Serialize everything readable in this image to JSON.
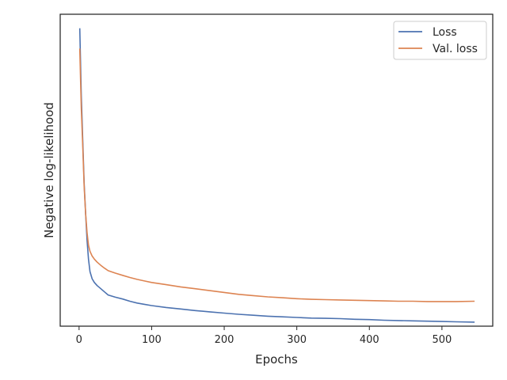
{
  "chart_data": {
    "type": "line",
    "title": "",
    "xlabel": "Epochs",
    "ylabel": "Negative log-likelihood",
    "xlim": [
      -26,
      570
    ],
    "ylim": [
      0,
      1
    ],
    "x_ticks": [
      0,
      100,
      200,
      300,
      400,
      500
    ],
    "x_tick_labels": [
      "0",
      "100",
      "200",
      "300",
      "400",
      "500"
    ],
    "y_tick_labels": [],
    "grid": false,
    "legend": "top-right",
    "y_values_note": "",
    "series": [
      {
        "name": "Loss",
        "color": "#4c72b0",
        "x": [
          1,
          3,
          5,
          7,
          9,
          11,
          13,
          15,
          18,
          21,
          25,
          30,
          35,
          40,
          50,
          60,
          70,
          80,
          90,
          100,
          120,
          140,
          160,
          180,
          200,
          220,
          240,
          260,
          280,
          300,
          320,
          340,
          360,
          380,
          400,
          420,
          440,
          460,
          480,
          500,
          520,
          545
        ],
        "y": [
          0.955,
          0.74,
          0.6,
          0.46,
          0.36,
          0.275,
          0.215,
          0.175,
          0.152,
          0.14,
          0.13,
          0.12,
          0.11,
          0.1,
          0.093,
          0.087,
          0.08,
          0.074,
          0.07,
          0.066,
          0.06,
          0.055,
          0.05,
          0.046,
          0.042,
          0.038,
          0.035,
          0.032,
          0.03,
          0.028,
          0.026,
          0.025,
          0.024,
          0.022,
          0.021,
          0.019,
          0.018,
          0.017,
          0.016,
          0.015,
          0.014,
          0.013
        ]
      },
      {
        "name": "Val. loss",
        "color": "#dd8452",
        "x": [
          1,
          3,
          5,
          7,
          9,
          11,
          13,
          15,
          18,
          21,
          25,
          30,
          35,
          40,
          50,
          60,
          70,
          80,
          90,
          100,
          120,
          140,
          160,
          180,
          200,
          220,
          240,
          260,
          280,
          300,
          320,
          340,
          360,
          380,
          400,
          420,
          440,
          460,
          480,
          500,
          520,
          545
        ],
        "y": [
          0.89,
          0.7,
          0.58,
          0.45,
          0.36,
          0.3,
          0.26,
          0.24,
          0.225,
          0.215,
          0.205,
          0.195,
          0.186,
          0.178,
          0.17,
          0.163,
          0.156,
          0.15,
          0.145,
          0.14,
          0.133,
          0.126,
          0.12,
          0.114,
          0.108,
          0.102,
          0.098,
          0.094,
          0.091,
          0.088,
          0.086,
          0.085,
          0.084,
          0.083,
          0.082,
          0.081,
          0.08,
          0.08,
          0.079,
          0.079,
          0.079,
          0.08
        ]
      }
    ]
  }
}
